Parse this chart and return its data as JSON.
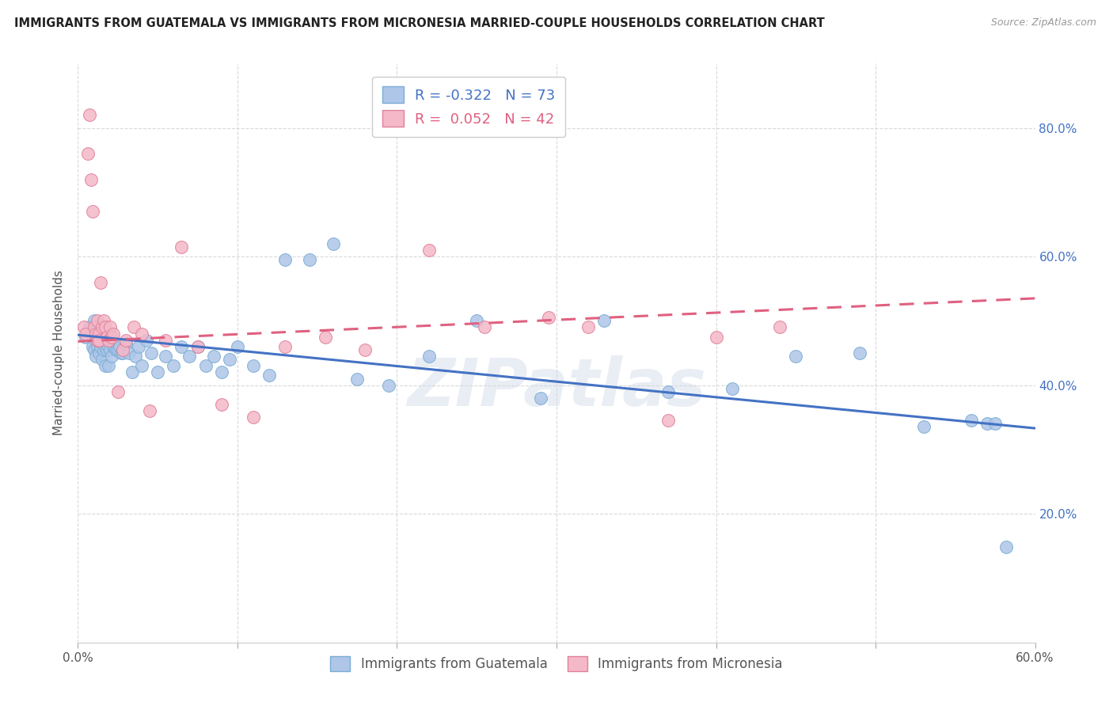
{
  "title": "IMMIGRANTS FROM GUATEMALA VS IMMIGRANTS FROM MICRONESIA MARRIED-COUPLE HOUSEHOLDS CORRELATION CHART",
  "source": "Source: ZipAtlas.com",
  "ylabel": "Married-couple Households",
  "xlim": [
    0.0,
    0.6
  ],
  "ylim": [
    0.0,
    0.9
  ],
  "xtick_positions": [
    0.0,
    0.1,
    0.2,
    0.3,
    0.4,
    0.5,
    0.6
  ],
  "xtick_labels": [
    "0.0%",
    "",
    "",
    "",
    "",
    "",
    "60.0%"
  ],
  "ytick_vals_right": [
    0.2,
    0.4,
    0.6,
    0.8
  ],
  "ytick_labels_right": [
    "20.0%",
    "40.0%",
    "60.0%",
    "80.0%"
  ],
  "legend_blue_label": "Immigrants from Guatemala",
  "legend_pink_label": "Immigrants from Micronesia",
  "R_blue": -0.322,
  "N_blue": 73,
  "R_pink": 0.052,
  "N_pink": 42,
  "blue_color": "#aec6e8",
  "blue_edge_color": "#7aadd4",
  "pink_color": "#f4b8c8",
  "pink_edge_color": "#e08098",
  "blue_line_color": "#4472c4",
  "pink_line_color": "#e06080",
  "watermark": "ZIPatlas",
  "blue_scatter_x": [
    0.005,
    0.007,
    0.008,
    0.009,
    0.01,
    0.01,
    0.011,
    0.011,
    0.012,
    0.012,
    0.013,
    0.013,
    0.014,
    0.014,
    0.015,
    0.015,
    0.016,
    0.016,
    0.017,
    0.017,
    0.018,
    0.018,
    0.019,
    0.019,
    0.02,
    0.02,
    0.021,
    0.022,
    0.023,
    0.024,
    0.025,
    0.026,
    0.027,
    0.028,
    0.03,
    0.032,
    0.034,
    0.036,
    0.038,
    0.04,
    0.043,
    0.046,
    0.05,
    0.055,
    0.06,
    0.065,
    0.07,
    0.075,
    0.08,
    0.085,
    0.09,
    0.095,
    0.1,
    0.11,
    0.12,
    0.13,
    0.145,
    0.16,
    0.175,
    0.195,
    0.22,
    0.25,
    0.29,
    0.33,
    0.37,
    0.41,
    0.45,
    0.49,
    0.53,
    0.56,
    0.57,
    0.575,
    0.582
  ],
  "blue_scatter_y": [
    0.475,
    0.49,
    0.48,
    0.46,
    0.5,
    0.455,
    0.47,
    0.445,
    0.49,
    0.46,
    0.475,
    0.45,
    0.49,
    0.46,
    0.49,
    0.44,
    0.49,
    0.455,
    0.46,
    0.43,
    0.48,
    0.455,
    0.46,
    0.43,
    0.48,
    0.455,
    0.445,
    0.46,
    0.46,
    0.455,
    0.455,
    0.46,
    0.45,
    0.45,
    0.465,
    0.45,
    0.42,
    0.445,
    0.46,
    0.43,
    0.47,
    0.45,
    0.42,
    0.445,
    0.43,
    0.46,
    0.445,
    0.46,
    0.43,
    0.445,
    0.42,
    0.44,
    0.46,
    0.43,
    0.415,
    0.595,
    0.595,
    0.62,
    0.41,
    0.4,
    0.445,
    0.5,
    0.38,
    0.5,
    0.39,
    0.395,
    0.445,
    0.45,
    0.335,
    0.345,
    0.34,
    0.34,
    0.148
  ],
  "pink_scatter_x": [
    0.004,
    0.005,
    0.006,
    0.007,
    0.008,
    0.009,
    0.01,
    0.011,
    0.012,
    0.012,
    0.013,
    0.013,
    0.014,
    0.015,
    0.016,
    0.017,
    0.018,
    0.019,
    0.02,
    0.021,
    0.022,
    0.025,
    0.028,
    0.03,
    0.035,
    0.04,
    0.045,
    0.055,
    0.065,
    0.075,
    0.09,
    0.11,
    0.13,
    0.155,
    0.18,
    0.22,
    0.255,
    0.295,
    0.32,
    0.37,
    0.4,
    0.44
  ],
  "pink_scatter_y": [
    0.49,
    0.48,
    0.76,
    0.82,
    0.72,
    0.67,
    0.49,
    0.48,
    0.5,
    0.47,
    0.48,
    0.47,
    0.56,
    0.49,
    0.5,
    0.49,
    0.475,
    0.47,
    0.49,
    0.475,
    0.48,
    0.39,
    0.455,
    0.47,
    0.49,
    0.48,
    0.36,
    0.47,
    0.615,
    0.46,
    0.37,
    0.35,
    0.46,
    0.475,
    0.455,
    0.61,
    0.49,
    0.505,
    0.49,
    0.345,
    0.475,
    0.49
  ]
}
